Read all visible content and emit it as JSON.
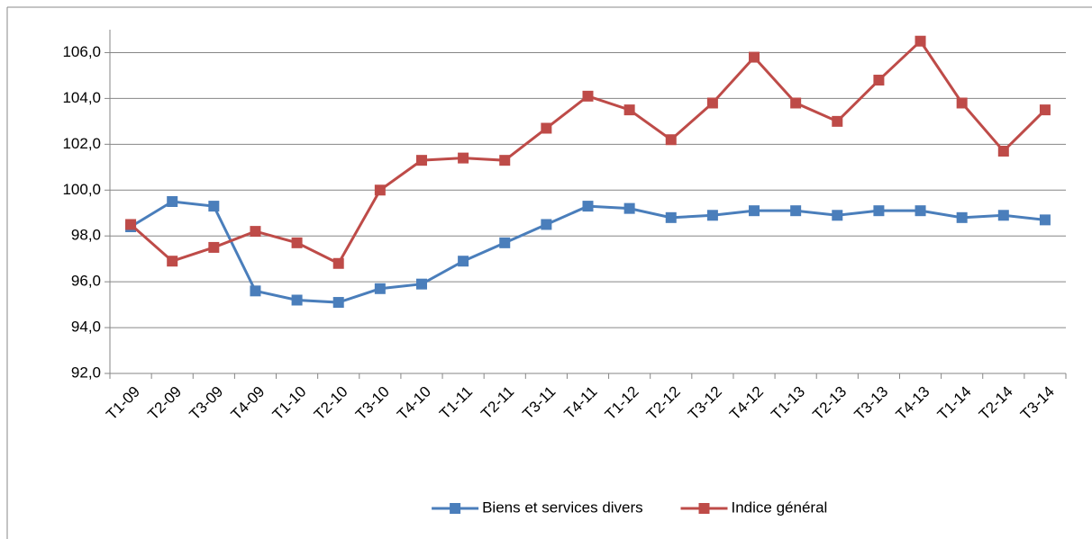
{
  "chart_data": {
    "type": "line",
    "categories": [
      "T1-09",
      "T2-09",
      "T3-09",
      "T4-09",
      "T1-10",
      "T2-10",
      "T3-10",
      "T4-10",
      "T1-11",
      "T2-11",
      "T3-11",
      "T4-11",
      "T1-12",
      "T2-12",
      "T3-12",
      "T4-12",
      "T1-13",
      "T2-13",
      "T3-13",
      "T4-13",
      "T1-14",
      "T2-14",
      "T3-14"
    ],
    "series": [
      {
        "name": "Biens et services divers",
        "color": "#4a7ebb",
        "values": [
          98.4,
          99.5,
          99.3,
          95.6,
          95.2,
          95.1,
          95.7,
          95.9,
          96.9,
          97.7,
          98.5,
          99.3,
          99.2,
          98.8,
          98.9,
          99.1,
          99.1,
          98.9,
          99.1,
          99.1,
          98.8,
          98.9,
          98.7
        ]
      },
      {
        "name": "Indice général",
        "color": "#be4b48",
        "values": [
          98.5,
          96.9,
          97.5,
          98.2,
          97.7,
          96.8,
          100.0,
          101.3,
          101.4,
          101.3,
          102.7,
          104.1,
          103.5,
          102.2,
          103.8,
          105.8,
          103.8,
          103.0,
          104.8,
          106.5,
          103.8,
          101.7,
          103.5
        ]
      }
    ],
    "ylim": [
      92,
      107
    ],
    "yticks": [
      {
        "value": 92,
        "label": "92,0"
      },
      {
        "value": 94,
        "label": "94,0"
      },
      {
        "value": 96,
        "label": "96,0"
      },
      {
        "value": 98,
        "label": "98,0"
      },
      {
        "value": 100,
        "label": "100,0"
      },
      {
        "value": 102,
        "label": "102,0"
      },
      {
        "value": 104,
        "label": "104,0"
      },
      {
        "value": 106,
        "label": "106,0"
      }
    ],
    "grid": true,
    "legend": "bottom"
  }
}
